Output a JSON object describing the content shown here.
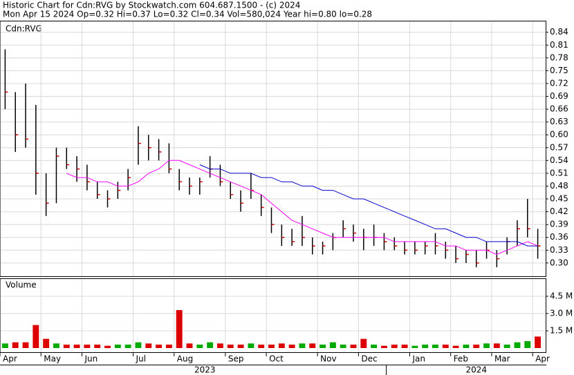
{
  "chart_data": [
    {
      "type": "ohlc",
      "title": "Historic Chart for Cdn:RVG by Stockwatch.com 604.687.1500 - (c) 2024",
      "subtitle": "Mon Apr 15 2024  Op=0.32  Hi=0.37  Lo=0.32  Cl=0.34  Vol=580,024  Year hi=0.80  lo=0.28",
      "panel_label": "Cdn:RVG",
      "categories": [
        "Apr",
        null,
        null,
        null,
        "May",
        null,
        null,
        null,
        "Jun",
        null,
        null,
        null,
        null,
        "Jul",
        null,
        null,
        null,
        "Aug",
        null,
        null,
        null,
        null,
        "Sep",
        null,
        null,
        null,
        "Oct",
        null,
        null,
        null,
        null,
        "Nov",
        null,
        null,
        null,
        "Dec",
        null,
        null,
        null,
        null,
        "Jan",
        null,
        null,
        null,
        "Feb",
        null,
        null,
        null,
        "Mar",
        null,
        null,
        null,
        "Apr"
      ],
      "years": [
        "2023",
        "2024"
      ],
      "high": [
        0.8,
        0.7,
        0.72,
        0.67,
        0.51,
        0.57,
        0.57,
        0.55,
        0.53,
        0.49,
        0.47,
        0.49,
        0.52,
        0.62,
        0.6,
        0.59,
        0.58,
        0.52,
        0.5,
        0.5,
        0.55,
        0.53,
        0.49,
        0.47,
        0.51,
        0.46,
        0.43,
        0.39,
        0.38,
        0.41,
        0.36,
        0.35,
        0.37,
        0.4,
        0.39,
        0.38,
        0.39,
        0.37,
        0.36,
        0.35,
        0.35,
        0.35,
        0.37,
        0.35,
        0.34,
        0.33,
        0.33,
        0.35,
        0.33,
        0.36,
        0.4,
        0.45,
        0.38
      ],
      "low": [
        0.66,
        0.56,
        0.57,
        0.46,
        0.41,
        0.44,
        0.52,
        0.49,
        0.47,
        0.45,
        0.43,
        0.45,
        0.47,
        0.53,
        0.54,
        0.54,
        0.51,
        0.47,
        0.46,
        0.46,
        0.5,
        0.48,
        0.45,
        0.42,
        0.45,
        0.41,
        0.37,
        0.34,
        0.34,
        0.34,
        0.32,
        0.32,
        0.33,
        0.36,
        0.35,
        0.33,
        0.34,
        0.33,
        0.33,
        0.32,
        0.32,
        0.32,
        0.32,
        0.31,
        0.3,
        0.3,
        0.29,
        0.31,
        0.29,
        0.32,
        0.34,
        0.36,
        0.31
      ],
      "close": [
        0.7,
        0.6,
        0.59,
        0.51,
        0.44,
        0.55,
        0.53,
        0.52,
        0.49,
        0.46,
        0.45,
        0.47,
        0.5,
        0.58,
        0.57,
        0.56,
        0.52,
        0.49,
        0.48,
        0.49,
        0.52,
        0.49,
        0.46,
        0.44,
        0.47,
        0.43,
        0.39,
        0.36,
        0.35,
        0.36,
        0.34,
        0.34,
        0.36,
        0.38,
        0.37,
        0.36,
        0.36,
        0.35,
        0.34,
        0.33,
        0.33,
        0.34,
        0.34,
        0.33,
        0.31,
        0.32,
        0.3,
        0.33,
        0.31,
        0.35,
        0.38,
        0.38,
        0.34
      ],
      "bar_color": "#000000",
      "close_color": "#cc0000",
      "series": [
        {
          "color": "#ff00ff",
          "values": [
            null,
            null,
            null,
            null,
            null,
            null,
            0.51,
            0.5,
            0.5,
            0.49,
            0.49,
            0.48,
            0.48,
            0.49,
            0.51,
            0.52,
            0.54,
            0.54,
            0.53,
            0.52,
            0.51,
            0.5,
            0.49,
            0.48,
            0.47,
            0.46,
            0.44,
            0.42,
            0.4,
            0.39,
            0.38,
            0.37,
            0.36,
            0.36,
            0.36,
            0.36,
            0.36,
            0.36,
            0.35,
            0.35,
            0.35,
            0.35,
            0.35,
            0.34,
            0.34,
            0.33,
            0.33,
            0.33,
            0.32,
            0.33,
            0.34,
            0.35,
            0.34
          ]
        },
        {
          "color": "#0000cc",
          "values": [
            null,
            null,
            null,
            null,
            null,
            null,
            null,
            null,
            null,
            null,
            null,
            null,
            null,
            null,
            null,
            null,
            null,
            null,
            null,
            0.53,
            0.52,
            0.52,
            0.51,
            0.51,
            0.51,
            0.5,
            0.5,
            0.49,
            0.49,
            0.48,
            0.48,
            0.47,
            0.47,
            0.46,
            0.45,
            0.45,
            0.44,
            0.43,
            0.42,
            0.41,
            0.4,
            0.39,
            0.38,
            0.38,
            0.37,
            0.36,
            0.36,
            0.35,
            0.35,
            0.35,
            0.35,
            0.34,
            0.34
          ]
        }
      ],
      "ylim": [
        0.269,
        0.867
      ],
      "yticks": [
        0.84,
        0.81,
        0.78,
        0.75,
        0.72,
        0.69,
        0.66,
        0.63,
        {
          "value": 0.6,
          "label": "0.60"
        },
        0.57,
        0.54,
        0.51,
        0.48,
        0.45,
        0.42,
        0.39,
        0.36,
        0.33,
        {
          "value": 0.3,
          "label": "0.30"
        }
      ],
      "grid": true
    },
    {
      "type": "bar",
      "panel_label": "Volume",
      "values": [
        0.4,
        0.5,
        0.5,
        2.0,
        0.8,
        0.4,
        0.3,
        0.3,
        0.3,
        0.3,
        0.2,
        0.3,
        0.3,
        0.5,
        0.4,
        0.3,
        0.3,
        3.3,
        0.4,
        0.3,
        0.5,
        0.4,
        0.3,
        0.3,
        0.4,
        0.3,
        0.3,
        0.4,
        0.3,
        0.4,
        0.4,
        0.3,
        0.5,
        0.3,
        0.3,
        0.8,
        0.3,
        0.2,
        0.3,
        0.3,
        0.2,
        0.3,
        0.3,
        0.3,
        0.2,
        0.3,
        0.3,
        0.4,
        0.4,
        0.3,
        0.5,
        0.6,
        1.0
      ],
      "up_color": "#00aa00",
      "down_color": "#dd0000",
      "ylim": [
        0,
        6.06
      ],
      "yticks": [
        {
          "value": 4.5,
          "label": "4.5 M"
        },
        {
          "value": 3.0,
          "label": "3.0 M"
        },
        {
          "value": 1.5,
          "label": "1.5 M"
        }
      ],
      "grid": true
    }
  ]
}
